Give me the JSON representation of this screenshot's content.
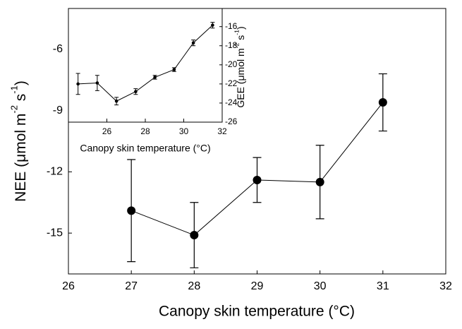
{
  "chart_data": [
    {
      "type": "line",
      "xlabel": "Canopy skin temperature (°C)",
      "ylabel": [
        "NEE (μmol m",
        "-2",
        " s",
        "-1",
        ")"
      ],
      "x": [
        27,
        28,
        29,
        30,
        31
      ],
      "series": [
        {
          "color": "#000000",
          "values": [
            -13.9,
            -15.1,
            -12.4,
            -12.5,
            -8.6
          ],
          "errors": [
            2.5,
            1.6,
            1.1,
            1.8,
            1.4
          ]
        }
      ],
      "xlim": [
        26,
        32
      ],
      "xticks": [
        26,
        27,
        28,
        29,
        30,
        31,
        32
      ],
      "ylim": [
        -17,
        -4
      ],
      "yticks": [
        -15,
        -12,
        -9,
        -6
      ],
      "grid": false
    },
    {
      "type": "line",
      "xlabel": "Canopy skin temperature (°C)",
      "ylabel": [
        "GEE (μmol m",
        "-2",
        " s",
        "-1",
        ")"
      ],
      "x": [
        24.5,
        25.5,
        26.5,
        27.5,
        28.5,
        29.5,
        30.5,
        31.5
      ],
      "series": [
        {
          "color": "#000000",
          "axis": "y2",
          "values": [
            -22.0,
            -21.9,
            -23.8,
            -22.8,
            -21.3,
            -20.5,
            -17.7,
            -15.85
          ],
          "errors": [
            1.1,
            0.8,
            0.4,
            0.3,
            0.2,
            0.2,
            0.3,
            0.3
          ]
        }
      ],
      "xlim": [
        24,
        32
      ],
      "xticks": [
        26,
        28,
        30,
        32
      ],
      "y2lim": [
        -26,
        -14.1
      ],
      "y2ticks": [
        -26,
        -24,
        -22,
        -20,
        -18,
        -16
      ],
      "grid": false
    }
  ]
}
